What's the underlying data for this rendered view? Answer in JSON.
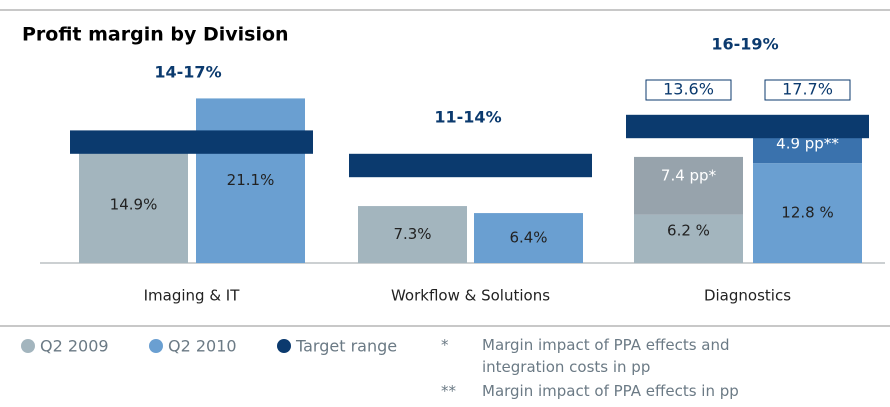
{
  "chart_data": {
    "type": "bar",
    "title": "Profit margin by Division",
    "categories": [
      "Imaging & IT",
      "Workflow & Solutions",
      "Diagnostics"
    ],
    "ylim": [
      0,
      30
    ],
    "series": [
      {
        "name": "Q2 2009",
        "color": "#a3b5be",
        "values": [
          14.9,
          7.3,
          6.2
        ],
        "value_labels": [
          "14.9%",
          "7.3%",
          "6.2 %"
        ],
        "stacked_values": [
          null,
          null,
          7.4
        ],
        "stacked_value_labels": [
          null,
          null,
          "7.4 pp*"
        ],
        "stacked_color": "#97a3ac",
        "totals": [
          null,
          null,
          13.6
        ],
        "total_labels": [
          null,
          null,
          "13.6%"
        ]
      },
      {
        "name": "Q2 2010",
        "color": "#6a9fd1",
        "values": [
          21.1,
          6.4,
          12.8
        ],
        "value_labels": [
          "21.1%",
          "6.4%",
          "12.8 %"
        ],
        "stacked_values": [
          null,
          null,
          4.9
        ],
        "stacked_value_labels": [
          null,
          null,
          "4.9 pp**"
        ],
        "stacked_color": "#3a72ad",
        "totals": [
          null,
          null,
          17.7
        ],
        "total_labels": [
          null,
          null,
          "17.7%"
        ]
      }
    ],
    "target": {
      "name": "Target range",
      "color": "#0b3a6e",
      "ranges": [
        [
          14,
          17
        ],
        [
          11,
          14
        ],
        [
          16,
          19
        ]
      ],
      "labels": [
        "14-17%",
        "11-14%",
        "16-19%"
      ]
    },
    "footnotes": [
      {
        "mark": "*",
        "text": "Margin impact of PPA effects and integration costs in pp"
      },
      {
        "mark": "**",
        "text": "Margin impact of PPA effects in pp"
      }
    ]
  }
}
